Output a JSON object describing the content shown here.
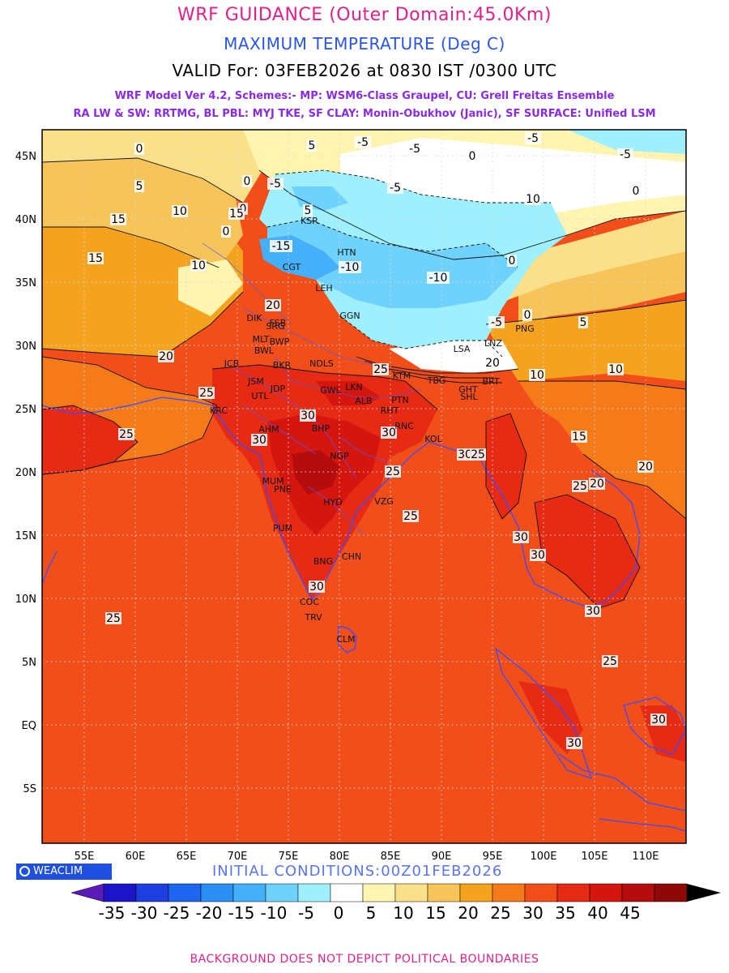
{
  "header": {
    "title": "WRF GUIDANCE (Outer Domain:45.0Km)",
    "variable": "MAXIMUM TEMPERATURE (Deg C)",
    "valid": "VALID For: 03FEB2026 at 0830 IST /0300 UTC",
    "model_line1": "WRF Model Ver 4.2, Schemes:- MP: WSM6-Class Graupel, CU: Grell Freitas Ensemble",
    "model_line2": "RA LW & SW: RRTMG, BL PBL: MYJ TKE, SF CLAY: Monin-Obukhov (Janic), SF SURFACE: Unified LSM"
  },
  "map": {
    "lon_labels": [
      "55E",
      "60E",
      "65E",
      "70E",
      "75E",
      "80E",
      "85E",
      "90E",
      "95E",
      "100E",
      "105E",
      "110E"
    ],
    "lat_labels": [
      "45N",
      "40N",
      "35N",
      "30N",
      "25N",
      "20N",
      "15N",
      "10N",
      "5N",
      "EQ",
      "5S"
    ],
    "contour_labels": [
      "0",
      "5",
      "-5",
      "0",
      "-5",
      "-5",
      "-5",
      "5",
      "0",
      "0",
      "10",
      "15",
      "10",
      "-5",
      "-5",
      "0",
      "15",
      "-15",
      "10",
      "-10",
      "0",
      "-10",
      "0",
      "5",
      "15",
      "-5",
      "20",
      "0",
      "5",
      "20",
      "25",
      "20",
      "10",
      "10",
      "25",
      "30",
      "15",
      "30",
      "30",
      "25",
      "25",
      "30",
      "25",
      "20",
      "25",
      "20",
      "25",
      "30",
      "30",
      "30",
      "25",
      "30",
      "25",
      "30",
      "30"
    ],
    "city_labels": [
      "KSR",
      "HTN",
      "CGT",
      "LEH",
      "GGN",
      "DIK",
      "SRG",
      "FSB",
      "MLT",
      "BWP",
      "BWL",
      "BKR",
      "NDLS",
      "JCB",
      "JSM",
      "JDP",
      "UTL",
      "GWL",
      "LKN",
      "KRC",
      "AHM",
      "BHP",
      "ALB",
      "PTN",
      "RHT",
      "RNC",
      "KOL",
      "NGP",
      "MUM",
      "PNE",
      "HYD",
      "VZG",
      "PUM",
      "BNG",
      "CHN",
      "COC",
      "TRV",
      "CLM",
      "LSA",
      "LNZ",
      "PNG",
      "KTM",
      "TBG",
      "GHT",
      "SHL",
      "BRT"
    ]
  },
  "legend": {
    "brand": "WEACLIM",
    "initial_conditions": "INITIAL CONDITIONS:00Z01FEB2026",
    "ticks": [
      "-35",
      "-30",
      "-25",
      "-20",
      "-15",
      "-10",
      "-5",
      "0",
      "5",
      "10",
      "15",
      "20",
      "25",
      "30",
      "35",
      "40",
      "45"
    ],
    "colors": [
      "#5a1bb8",
      "#1c14c8",
      "#1e3ee0",
      "#1d66f0",
      "#2b8ef5",
      "#45b0fa",
      "#6fd2fd",
      "#9ff0ff",
      "#ffffff",
      "#fff5b0",
      "#fbe08a",
      "#f7c45a",
      "#f5a21e",
      "#f57a1a",
      "#f24e1a",
      "#e62a14",
      "#d4160f",
      "#b50d0d",
      "#8e0808",
      "#000000"
    ]
  },
  "footer": "BACKGROUND DOES NOT DEPICT POLITICAL BOUNDARIES"
}
